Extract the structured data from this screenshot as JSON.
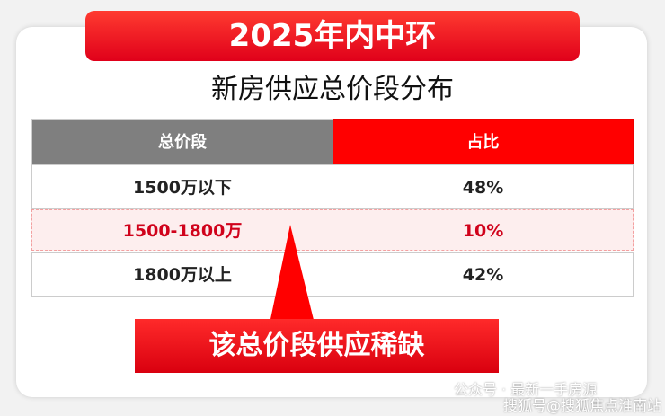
{
  "header": {
    "title": "2025年内中环",
    "subtitle": "新房供应总价段分布"
  },
  "table": {
    "columns": [
      "总价段",
      "占比"
    ],
    "rows": [
      [
        "1500万以下",
        "48%"
      ],
      [
        "1500-1800万",
        "10%"
      ],
      [
        "1800万以上",
        "42%"
      ]
    ]
  },
  "callout": "该总价段供应稀缺",
  "watermark": {
    "account": "公众号 · 最新一手房源",
    "source": "搜狐号@搜狐焦点淮南站"
  }
}
